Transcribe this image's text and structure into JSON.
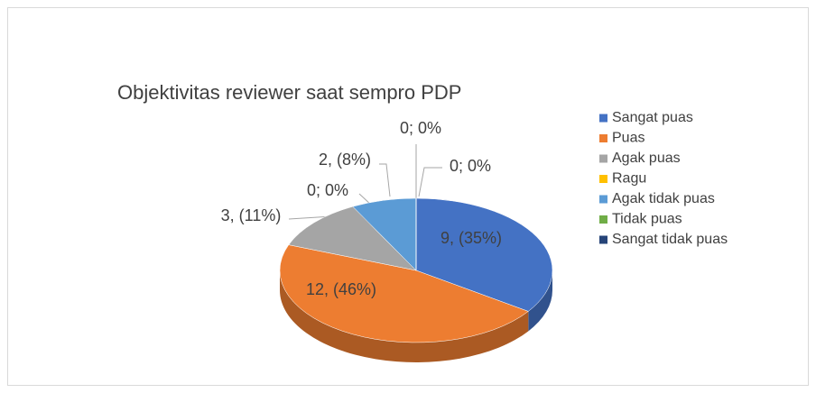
{
  "chart_data": {
    "type": "pie",
    "title": "Objektivitas reviewer saat sempro PDP",
    "categories": [
      "Sangat puas",
      "Puas",
      "Agak puas",
      "Ragu",
      "Agak tidak puas",
      "Tidak puas",
      "Sangat tidak puas"
    ],
    "values": [
      9,
      12,
      3,
      0,
      2,
      0,
      0
    ],
    "value_labels": [
      "9, (35%)",
      "12, (46%)",
      "3, (11%)",
      "0; 0%",
      "2, (8%)",
      "0; 0%",
      "0; 0%"
    ],
    "colors": [
      "#4472c4",
      "#ed7d31",
      "#a5a5a5",
      "#ffc000",
      "#5b9bd5",
      "#70ad47",
      "#264478"
    ],
    "legend": "right"
  }
}
